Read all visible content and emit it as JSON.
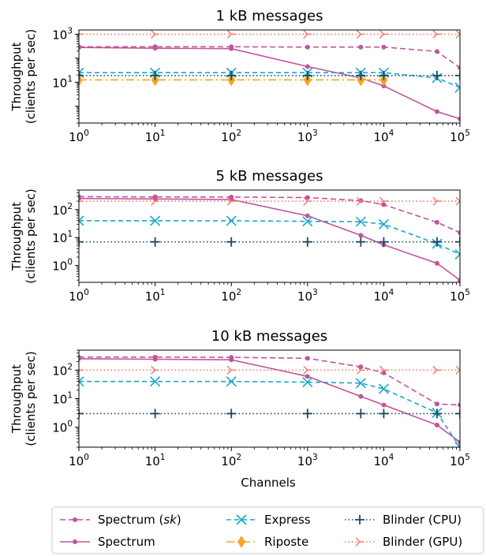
{
  "figure": {
    "xlabel": "Channels",
    "ylabel_line1": "Throughput",
    "ylabel_line2": "(clients per sec)"
  },
  "chart_data": {
    "type": "line",
    "x_scale": "log",
    "y_scale": "log",
    "grid": false,
    "legend_placement": "bottom",
    "x": [
      1,
      10,
      100,
      1000,
      5000,
      10000,
      50000,
      100000
    ],
    "xlim": [
      1,
      100000
    ],
    "series_styles": [
      {
        "name": "Spectrum (sk)",
        "name_plain": "Spectrum (",
        "name_italic": "sk",
        "name_close": ")",
        "color": "#c2549c",
        "dash": "7,4",
        "marker": "dot"
      },
      {
        "name": "Spectrum",
        "color": "#c2549c",
        "dash": "",
        "marker": "dot"
      },
      {
        "name": "Express",
        "color": "#1aa7cc",
        "dash": "6,4",
        "marker": "x"
      },
      {
        "name": "Riposte",
        "color": "#f5a623",
        "dash": "10,4,2,4",
        "marker": "diamond"
      },
      {
        "name": "Blinder (CPU)",
        "color": "#1f4a5e",
        "dash": "1.5,3",
        "marker": "plus"
      },
      {
        "name": "Blinder (GPU)",
        "color": "#f2786a",
        "dash": "1.5,3",
        "marker": "tri"
      }
    ],
    "panels": [
      {
        "title": "1 kB messages",
        "ylim": [
          0.2,
          1500
        ],
        "yticks": [
          10,
          1000
        ],
        "series": [
          {
            "name": "Spectrum (sk)",
            "values": [
              300,
              300,
              300,
              290,
              290,
              290,
              190,
              40
            ]
          },
          {
            "name": "Spectrum",
            "values": [
              280,
              260,
              250,
              45,
              15,
              7,
              0.6,
              0.3
            ]
          },
          {
            "name": "Express",
            "values": [
              25,
              25,
              25,
              25,
              25,
              25,
              15,
              6
            ]
          },
          {
            "name": "Riposte",
            "values": [
              12.5,
              12.5,
              12.5,
              12.5,
              12.5,
              12.5,
              null,
              null
            ]
          },
          {
            "name": "Blinder (CPU)",
            "values": [
              19,
              19,
              19,
              19,
              19,
              19,
              19,
              19
            ]
          },
          {
            "name": "Blinder (GPU)",
            "values": [
              1000,
              1000,
              1000,
              1000,
              1000,
              1000,
              1000,
              1000
            ]
          }
        ]
      },
      {
        "title": "5 kB messages",
        "ylim": [
          0.25,
          500
        ],
        "yticks": [
          1,
          10,
          100
        ],
        "series": [
          {
            "name": "Spectrum (sk)",
            "values": [
              290,
              285,
              280,
              270,
              210,
              150,
              35,
              15
            ]
          },
          {
            "name": "Spectrum",
            "values": [
              250,
              240,
              230,
              60,
              12,
              5.5,
              1.2,
              0.3
            ]
          },
          {
            "name": "Express",
            "values": [
              40,
              40,
              40,
              38,
              37,
              30,
              6,
              2.5
            ]
          },
          {
            "name": "Blinder (CPU)",
            "values": [
              7,
              7,
              7,
              7,
              7,
              7,
              7,
              7
            ]
          },
          {
            "name": "Blinder (GPU)",
            "values": [
              200,
              200,
              200,
              200,
              200,
              200,
              200,
              200
            ]
          }
        ]
      },
      {
        "title": "10 kB messages",
        "ylim": [
          0.2,
          500
        ],
        "yticks": [
          1,
          10,
          100
        ],
        "series": [
          {
            "name": "Spectrum (sk)",
            "values": [
              285,
              285,
              280,
              260,
              130,
              80,
              6.5,
              6
            ]
          },
          {
            "name": "Spectrum",
            "values": [
              250,
              240,
              230,
              60,
              12,
              6,
              1.2,
              0.3
            ]
          },
          {
            "name": "Express",
            "values": [
              40,
              40,
              40,
              38,
              35,
              22,
              3.2,
              0.2
            ]
          },
          {
            "name": "Blinder (CPU)",
            "values": [
              3,
              3,
              3,
              3,
              3,
              3,
              3,
              3
            ]
          },
          {
            "name": "Blinder (GPU)",
            "values": [
              100,
              100,
              100,
              100,
              100,
              100,
              100,
              100
            ]
          }
        ]
      }
    ],
    "legend_order": [
      "Spectrum (sk)",
      "Spectrum",
      "Express",
      "Riposte",
      "Blinder (CPU)",
      "Blinder (GPU)"
    ]
  }
}
